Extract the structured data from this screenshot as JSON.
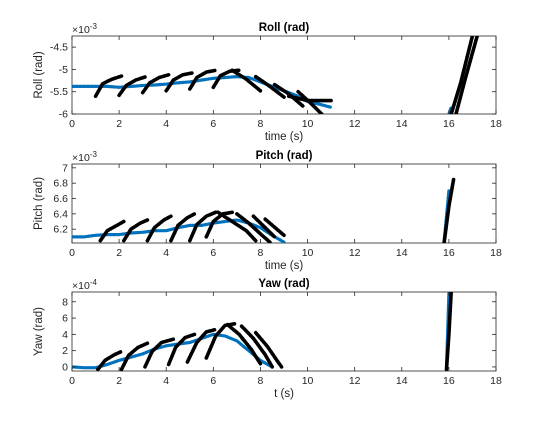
{
  "chart_data": [
    {
      "type": "line",
      "title": "Roll (rad)",
      "xlabel": "time (s)",
      "ylabel": "Roll (rad)",
      "exponent_label": "×10",
      "exponent_power": "-3",
      "xlim": [
        0,
        18
      ],
      "ylim": [
        -6.0,
        -4.25
      ],
      "xticks": [
        "0",
        "2",
        "4",
        "6",
        "8",
        "10",
        "12",
        "14",
        "16",
        "18"
      ],
      "yticks": [
        "-6",
        "-5.5",
        "-5",
        "-4.5"
      ],
      "ytick_values": [
        -6.0,
        -5.5,
        -5.0,
        -4.5
      ],
      "series": [
        {
          "color": "#0072BD",
          "style": "dotted-thick",
          "segments": [
            [
              [
                0.0,
                -5.38
              ],
              [
                0.5,
                -5.38
              ],
              [
                1.0,
                -5.38
              ],
              [
                1.5,
                -5.38
              ],
              [
                2.0,
                -5.4
              ],
              [
                2.5,
                -5.38
              ],
              [
                3.0,
                -5.36
              ],
              [
                3.5,
                -5.35
              ],
              [
                4.0,
                -5.33
              ],
              [
                4.5,
                -5.3
              ],
              [
                5.0,
                -5.28
              ],
              [
                5.5,
                -5.24
              ],
              [
                6.0,
                -5.2
              ],
              [
                6.5,
                -5.18
              ],
              [
                7.0,
                -5.16
              ],
              [
                7.5,
                -5.18
              ],
              [
                8.0,
                -5.28
              ],
              [
                8.5,
                -5.38
              ],
              [
                9.0,
                -5.48
              ],
              [
                9.5,
                -5.58
              ],
              [
                10.0,
                -5.72
              ],
              [
                10.5,
                -5.78
              ],
              [
                11.0,
                -5.85
              ]
            ],
            [
              [
                16.0,
                -6.0
              ],
              [
                16.1,
                -5.85
              ]
            ]
          ]
        },
        {
          "color": "#000000",
          "style": "dotted-thick",
          "segments": [
            [
              [
                1.0,
                -5.6
              ],
              [
                1.3,
                -5.32
              ],
              [
                1.7,
                -5.22
              ],
              [
                2.1,
                -5.15
              ]
            ],
            [
              [
                2.0,
                -5.58
              ],
              [
                2.3,
                -5.36
              ],
              [
                2.7,
                -5.24
              ],
              [
                3.1,
                -5.17
              ]
            ],
            [
              [
                3.0,
                -5.52
              ],
              [
                3.3,
                -5.3
              ],
              [
                3.7,
                -5.18
              ],
              [
                4.1,
                -5.12
              ]
            ],
            [
              [
                4.0,
                -5.48
              ],
              [
                4.3,
                -5.24
              ],
              [
                4.7,
                -5.12
              ],
              [
                5.1,
                -5.08
              ]
            ],
            [
              [
                5.0,
                -5.44
              ],
              [
                5.3,
                -5.18
              ],
              [
                5.7,
                -5.06
              ],
              [
                6.1,
                -5.02
              ]
            ],
            [
              [
                6.0,
                -5.4
              ],
              [
                6.3,
                -5.14
              ],
              [
                6.7,
                -5.04
              ],
              [
                7.1,
                -5.02
              ]
            ],
            [
              [
                6.8,
                -5.02
              ],
              [
                7.4,
                -5.22
              ],
              [
                8.0,
                -5.48
              ]
            ],
            [
              [
                7.8,
                -5.16
              ],
              [
                8.4,
                -5.38
              ],
              [
                9.0,
                -5.62
              ]
            ],
            [
              [
                8.6,
                -5.34
              ],
              [
                9.2,
                -5.55
              ],
              [
                9.8,
                -5.82
              ]
            ],
            [
              [
                9.6,
                -5.5
              ],
              [
                10.1,
                -5.74
              ],
              [
                10.6,
                -6.0
              ]
            ],
            [
              [
                9.2,
                -5.6
              ],
              [
                10.0,
                -5.7
              ],
              [
                11.0,
                -5.7
              ]
            ],
            [
              [
                16.1,
                -6.0
              ],
              [
                16.5,
                -5.3
              ],
              [
                17.0,
                -4.25
              ]
            ],
            [
              [
                16.3,
                -6.0
              ],
              [
                16.7,
                -5.2
              ],
              [
                17.2,
                -4.25
              ]
            ]
          ]
        }
      ]
    },
    {
      "type": "line",
      "title": "Pitch (rad)",
      "xlabel": "time (s)",
      "ylabel": "Pitch (rad)",
      "exponent_label": "×10",
      "exponent_power": "-3",
      "xlim": [
        0,
        18
      ],
      "ylim": [
        6.02,
        7.05
      ],
      "xticks": [
        "0",
        "2",
        "4",
        "6",
        "8",
        "10",
        "12",
        "14",
        "16",
        "18"
      ],
      "yticks": [
        "6.2",
        "6.4",
        "6.6",
        "6.8",
        "7"
      ],
      "ytick_values": [
        6.2,
        6.4,
        6.6,
        6.8,
        7.0
      ],
      "series": [
        {
          "color": "#0072BD",
          "style": "dotted-thick",
          "segments": [
            [
              [
                0.0,
                6.1
              ],
              [
                0.5,
                6.1
              ],
              [
                1.0,
                6.12
              ],
              [
                1.5,
                6.13
              ],
              [
                2.0,
                6.13
              ],
              [
                2.5,
                6.15
              ],
              [
                3.0,
                6.16
              ],
              [
                3.5,
                6.18
              ],
              [
                4.0,
                6.18
              ],
              [
                4.5,
                6.22
              ],
              [
                5.0,
                6.25
              ],
              [
                5.5,
                6.25
              ],
              [
                6.0,
                6.28
              ],
              [
                6.5,
                6.3
              ],
              [
                7.0,
                6.32
              ],
              [
                7.5,
                6.28
              ],
              [
                8.0,
                6.22
              ],
              [
                8.5,
                6.12
              ],
              [
                9.0,
                6.03
              ]
            ],
            [
              [
                15.8,
                6.05
              ],
              [
                16.0,
                6.7
              ]
            ]
          ]
        },
        {
          "color": "#000000",
          "style": "dotted-thick",
          "segments": [
            [
              [
                1.2,
                6.05
              ],
              [
                1.5,
                6.18
              ],
              [
                1.9,
                6.25
              ],
              [
                2.2,
                6.3
              ]
            ],
            [
              [
                2.2,
                6.05
              ],
              [
                2.5,
                6.2
              ],
              [
                2.9,
                6.28
              ],
              [
                3.2,
                6.32
              ]
            ],
            [
              [
                3.2,
                6.05
              ],
              [
                3.5,
                6.22
              ],
              [
                3.9,
                6.32
              ],
              [
                4.2,
                6.37
              ]
            ],
            [
              [
                4.2,
                6.05
              ],
              [
                4.5,
                6.25
              ],
              [
                4.9,
                6.35
              ],
              [
                5.2,
                6.4
              ]
            ],
            [
              [
                5.0,
                6.05
              ],
              [
                5.3,
                6.26
              ],
              [
                5.7,
                6.37
              ],
              [
                6.1,
                6.42
              ]
            ],
            [
              [
                5.7,
                6.1
              ],
              [
                6.0,
                6.3
              ],
              [
                6.4,
                6.4
              ],
              [
                6.8,
                6.42
              ]
            ],
            [
              [
                6.2,
                6.42
              ],
              [
                6.8,
                6.3
              ],
              [
                7.4,
                6.18
              ],
              [
                7.8,
                6.05
              ]
            ],
            [
              [
                7.0,
                6.4
              ],
              [
                7.5,
                6.28
              ],
              [
                8.0,
                6.14
              ],
              [
                8.4,
                6.03
              ]
            ],
            [
              [
                7.7,
                6.37
              ],
              [
                8.2,
                6.22
              ],
              [
                8.6,
                6.1
              ]
            ],
            [
              [
                8.2,
                6.33
              ],
              [
                8.7,
                6.2
              ],
              [
                9.0,
                6.12
              ]
            ],
            [
              [
                15.8,
                6.03
              ],
              [
                16.0,
                6.5
              ],
              [
                16.2,
                6.85
              ]
            ]
          ]
        }
      ]
    },
    {
      "type": "line",
      "title": "Yaw (rad)",
      "xlabel": "t (s)",
      "ylabel": "Yaw (rad)",
      "exponent_label": "×10",
      "exponent_power": "-4",
      "xlim": [
        0,
        18
      ],
      "ylim": [
        -0.5,
        9.2
      ],
      "xticks": [
        "0",
        "2",
        "4",
        "6",
        "8",
        "10",
        "12",
        "14",
        "16",
        "18"
      ],
      "yticks": [
        "0",
        "2",
        "4",
        "6",
        "8"
      ],
      "ytick_values": [
        0,
        2,
        4,
        6,
        8
      ],
      "series": [
        {
          "color": "#0072BD",
          "style": "dotted-thick",
          "segments": [
            [
              [
                0.0,
                0.0
              ],
              [
                0.5,
                -0.1
              ],
              [
                1.0,
                -0.1
              ],
              [
                1.5,
                0.3
              ],
              [
                2.0,
                0.8
              ],
              [
                2.5,
                1.2
              ],
              [
                3.0,
                1.6
              ],
              [
                3.5,
                2.2
              ],
              [
                4.0,
                2.6
              ],
              [
                4.5,
                2.8
              ],
              [
                5.0,
                3.0
              ],
              [
                5.5,
                3.5
              ],
              [
                6.0,
                4.0
              ],
              [
                6.5,
                3.8
              ],
              [
                7.0,
                3.2
              ],
              [
                7.5,
                2.0
              ],
              [
                8.0,
                0.8
              ],
              [
                8.5,
                0.0
              ]
            ],
            [
              [
                15.9,
                0.0
              ],
              [
                16.0,
                9.0
              ]
            ]
          ]
        },
        {
          "color": "#000000",
          "style": "dotted-thick",
          "segments": [
            [
              [
                1.1,
                -0.3
              ],
              [
                1.4,
                0.8
              ],
              [
                1.8,
                1.5
              ],
              [
                2.1,
                1.9
              ]
            ],
            [
              [
                2.1,
                -0.3
              ],
              [
                2.4,
                1.4
              ],
              [
                2.8,
                2.4
              ],
              [
                3.2,
                2.9
              ]
            ],
            [
              [
                3.1,
                0.0
              ],
              [
                3.4,
                1.9
              ],
              [
                3.8,
                3.0
              ],
              [
                4.3,
                3.4
              ]
            ],
            [
              [
                4.1,
                0.3
              ],
              [
                4.4,
                2.4
              ],
              [
                4.8,
                3.6
              ],
              [
                5.2,
                4.0
              ]
            ],
            [
              [
                4.9,
                0.6
              ],
              [
                5.3,
                3.0
              ],
              [
                5.7,
                4.3
              ],
              [
                6.1,
                4.6
              ]
            ],
            [
              [
                5.7,
                1.1
              ],
              [
                6.1,
                3.8
              ],
              [
                6.5,
                5.1
              ],
              [
                6.9,
                5.3
              ]
            ],
            [
              [
                6.6,
                5.2
              ],
              [
                7.1,
                4.0
              ],
              [
                7.6,
                2.2
              ],
              [
                8.0,
                0.4
              ]
            ],
            [
              [
                7.2,
                5.0
              ],
              [
                7.7,
                3.5
              ],
              [
                8.2,
                1.5
              ],
              [
                8.5,
                0.0
              ]
            ],
            [
              [
                7.8,
                4.2
              ],
              [
                8.3,
                2.5
              ],
              [
                8.7,
                0.8
              ],
              [
                8.9,
                0.0
              ]
            ],
            [
              [
                15.9,
                -0.3
              ],
              [
                16.0,
                4.0
              ],
              [
                16.1,
                9.2
              ]
            ]
          ]
        }
      ]
    }
  ]
}
